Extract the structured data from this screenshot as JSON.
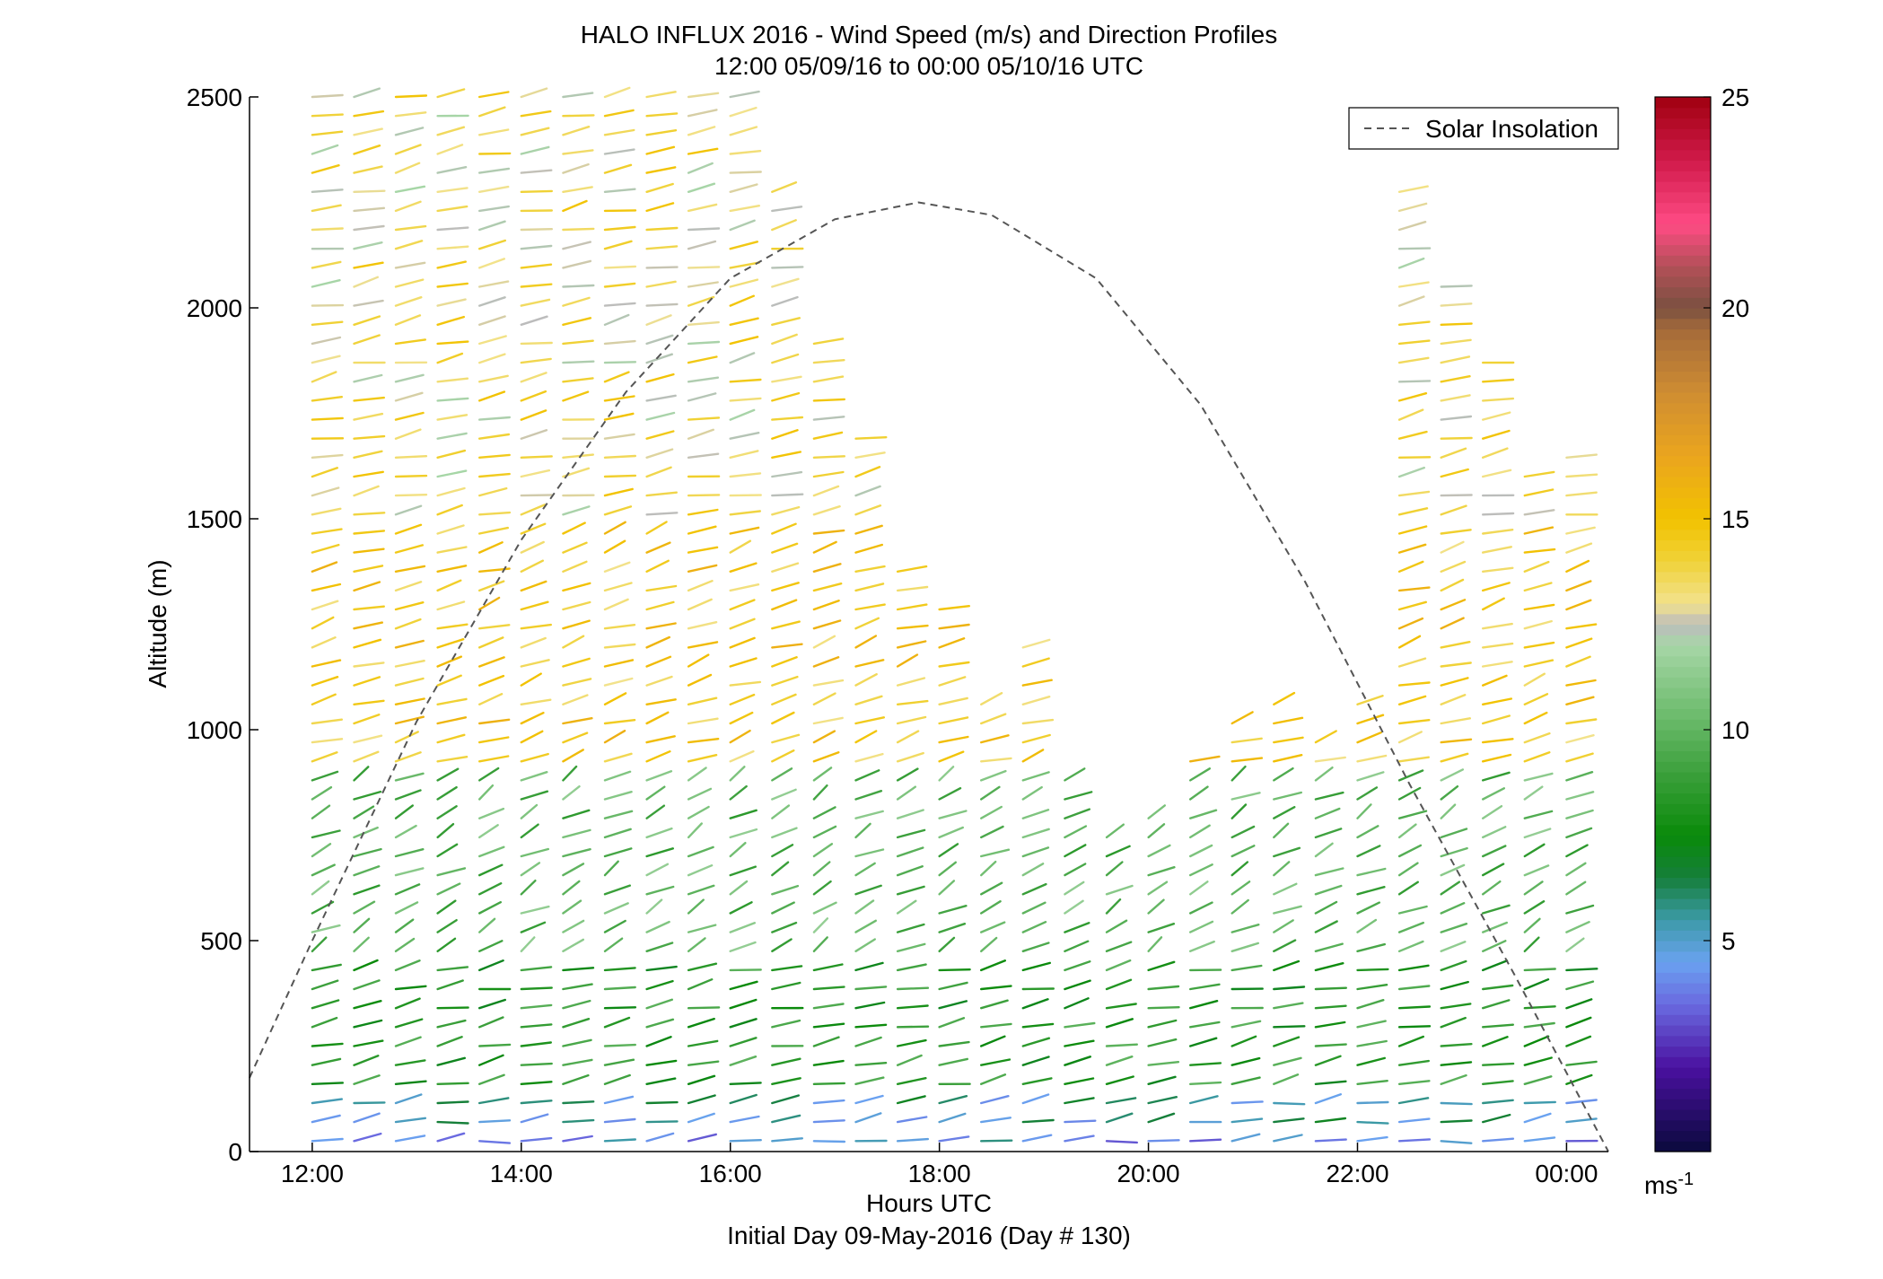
{
  "chart_data": {
    "type": "wind barb profile",
    "title": "HALO INFLUX 2016 - Wind Speed (m/s) and Direction Profiles",
    "subtitle": "12:00 05/09/16 to 00:00 05/10/16  UTC",
    "xlabel": "Hours UTC",
    "xlabel2": "Initial Day 09-May-2016 (Day # 130)",
    "ylabel": "Altitude (m)",
    "x_unit": "hours UTC since 12:00 05/09/16",
    "xlim": [
      -0.6,
      12.4
    ],
    "ylim": [
      0,
      2500
    ],
    "xticks": [
      {
        "value": 0,
        "label": "12:00"
      },
      {
        "value": 2,
        "label": "14:00"
      },
      {
        "value": 4,
        "label": "16:00"
      },
      {
        "value": 6,
        "label": "18:00"
      },
      {
        "value": 8,
        "label": "20:00"
      },
      {
        "value": 10,
        "label": "22:00"
      },
      {
        "value": 12,
        "label": "00:00"
      }
    ],
    "yticks": [
      {
        "value": 0,
        "label": "0"
      },
      {
        "value": 500,
        "label": "500"
      },
      {
        "value": 1000,
        "label": "1000"
      },
      {
        "value": 1500,
        "label": "1500"
      },
      {
        "value": 2000,
        "label": "2000"
      },
      {
        "value": 2500,
        "label": "2500"
      }
    ],
    "legend": {
      "label": "Solar Insolation",
      "placement": "top-right"
    },
    "solar_insolation": {
      "x": [
        -0.6,
        0,
        1,
        2,
        3,
        4,
        5,
        5.8,
        6.5,
        7.5,
        8.5,
        9.5,
        10.5,
        11.5,
        12.4
      ],
      "y": [
        175,
        500,
        1020,
        1450,
        1800,
        2070,
        2210,
        2250,
        2220,
        2070,
        1770,
        1350,
        870,
        420,
        0
      ],
      "style": "dashed",
      "color": "#555555"
    },
    "colorbar": {
      "min": 0,
      "max": 25,
      "ticks": [
        5,
        10,
        15,
        20,
        25
      ],
      "unit_label": "ms",
      "unit_superscript": "-1",
      "colormap": [
        {
          "v": 0,
          "c": "#0a0a3c"
        },
        {
          "v": 2,
          "c": "#4a10a0"
        },
        {
          "v": 3.5,
          "c": "#6a6ae0"
        },
        {
          "v": 4.5,
          "c": "#6aa2f0"
        },
        {
          "v": 5.5,
          "c": "#3c9aa8"
        },
        {
          "v": 6.5,
          "c": "#157f3a"
        },
        {
          "v": 7.5,
          "c": "#0a8a0a"
        },
        {
          "v": 9,
          "c": "#3ca03c"
        },
        {
          "v": 10.5,
          "c": "#72be72"
        },
        {
          "v": 12,
          "c": "#a6d6a6"
        },
        {
          "v": 12.5,
          "c": "#bcbcbc"
        },
        {
          "v": 13,
          "c": "#f2e28c"
        },
        {
          "v": 14,
          "c": "#f0d238"
        },
        {
          "v": 15,
          "c": "#f2c200"
        },
        {
          "v": 16.5,
          "c": "#eaa51e"
        },
        {
          "v": 18,
          "c": "#cf8d32"
        },
        {
          "v": 19.5,
          "c": "#a46a3a"
        },
        {
          "v": 20,
          "c": "#7a5040"
        },
        {
          "v": 21,
          "c": "#b35058"
        },
        {
          "v": 22,
          "c": "#ff4b85"
        },
        {
          "v": 23.5,
          "c": "#d01a4a"
        },
        {
          "v": 25,
          "c": "#a00010"
        }
      ]
    },
    "wind_field": {
      "description": "Each barb: x in hours, altitude in m, speed in m/s, direction in degrees (meteorological, wind from)",
      "columns_x": [
        0,
        0.4,
        0.8,
        1.2,
        1.6,
        2.0,
        2.4,
        2.8,
        3.2,
        3.6,
        4.0,
        4.4,
        4.8,
        5.2,
        5.6,
        6.0,
        6.4,
        6.8,
        7.2,
        7.6,
        8.0,
        8.4,
        8.8,
        9.2,
        9.6,
        10.0,
        10.4,
        10.8,
        11.2,
        11.6,
        12.0
      ],
      "profile_summary": [
        {
          "layer": "0-60 m",
          "speed": 4.5,
          "dir": 260
        },
        {
          "layer": "60-150 m",
          "speed": 5.5,
          "dir": 255
        },
        {
          "layer": "150-450 m",
          "speed": 8.5,
          "dir": 250
        },
        {
          "layer": "450-900 m",
          "speed": 10.0,
          "dir": 225
        },
        {
          "layer": "900-1500 m",
          "speed": 14.5,
          "dir": 240
        },
        {
          "layer": "1500-2500 m",
          "speed": 13.5,
          "dir": 250
        }
      ],
      "column_tops_m": [
        2500,
        2500,
        2500,
        2500,
        2500,
        2500,
        2500,
        2500,
        2500,
        2500,
        2500,
        2300,
        1950,
        1700,
        1400,
        1300,
        1100,
        1200,
        900,
        750,
        800,
        950,
        1050,
        1100,
        1000,
        1100,
        2300,
        2050,
        1900,
        1600,
        1650
      ]
    }
  }
}
